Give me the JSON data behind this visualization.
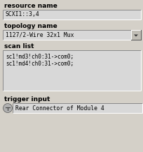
{
  "bg_color": "#d4d0c8",
  "text_color": "#000000",
  "resource_name_label": "resource name",
  "resource_name_value": "SCXI1::3,4",
  "topology_name_label": "topology name",
  "topology_name_value": "1127/2-Wire 32x1 Mux",
  "scan_list_label": "scan list",
  "scan_list_lines": [
    "sc1!md3!ch0:31->com0;",
    "sc1!md4!ch0:31->com0;"
  ],
  "trigger_input_label": "trigger input",
  "trigger_input_value": "Rear Connector of Module 4",
  "monospace_font": "DejaVu Sans Mono",
  "label_fontsize": 6.5,
  "value_fontsize": 5.8,
  "scan_fontsize": 5.5,
  "figsize": [
    2.05,
    2.18
  ],
  "dpi": 100
}
